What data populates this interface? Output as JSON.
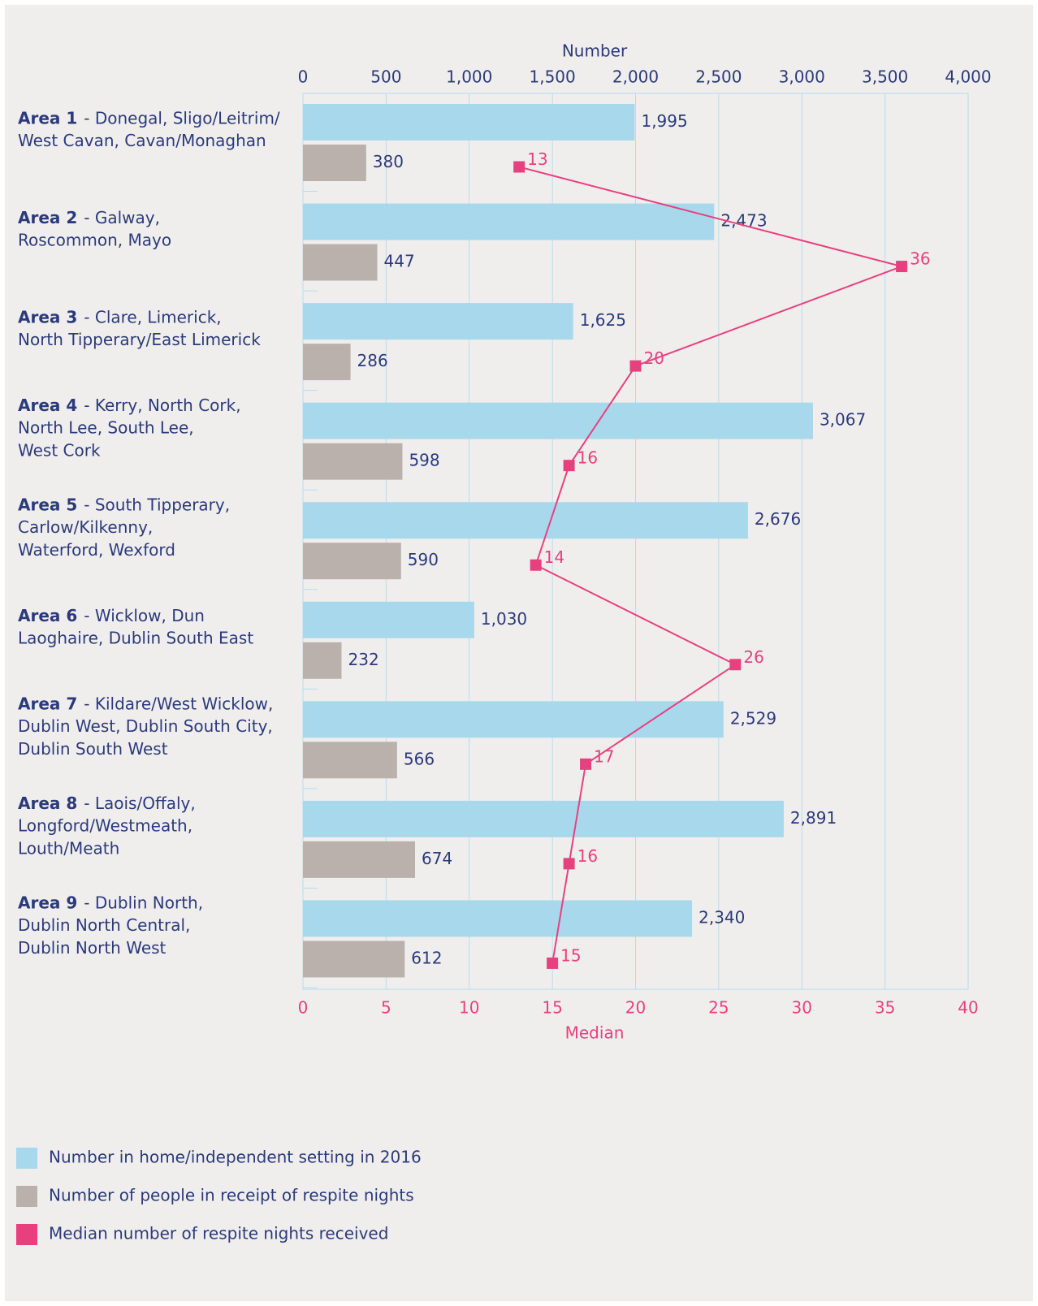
{
  "chart_data": {
    "type": "bar",
    "x_label": "Number",
    "x2_label": "Median",
    "categories": [
      {
        "name": "Area 1",
        "lines": [
          "- Donegal, Sligo/Leitrim/",
          "West Cavan, Cavan/Monaghan"
        ]
      },
      {
        "name": "Area 2",
        "lines": [
          "- Galway,",
          "Roscommon, Mayo"
        ]
      },
      {
        "name": "Area 3",
        "lines": [
          "- Clare, Limerick,",
          "North Tipperary/East Limerick"
        ]
      },
      {
        "name": "Area 4",
        "lines": [
          "- Kerry, North Cork,",
          "North Lee, South Lee,",
          "West Cork"
        ]
      },
      {
        "name": "Area 5",
        "lines": [
          "- South Tipperary,",
          "Carlow/Kilkenny,",
          "Waterford, Wexford"
        ]
      },
      {
        "name": "Area 6",
        "lines": [
          "- Wicklow, Dun",
          "Laoghaire, Dublin South East"
        ]
      },
      {
        "name": "Area 7",
        "lines": [
          "- Kildare/West Wicklow,",
          "Dublin West, Dublin South City,",
          "Dublin South West"
        ]
      },
      {
        "name": "Area 8",
        "lines": [
          "- Laois/Offaly,",
          "Longford/Westmeath,",
          "Louth/Meath"
        ]
      },
      {
        "name": "Area 9",
        "lines": [
          "- Dublin North,",
          "Dublin North Central,",
          "Dublin North West"
        ]
      }
    ],
    "series": [
      {
        "name": "Number in home/independent setting in 2016",
        "color": "#a8d8ec",
        "values": [
          1995,
          2473,
          1625,
          3067,
          2676,
          1030,
          2529,
          2891,
          2340
        ],
        "value_labels": [
          "1,995",
          "2,473",
          "1,625",
          "3,067",
          "2,676",
          "1,030",
          "2,529",
          "2,891",
          "2,340"
        ]
      },
      {
        "name": "Number of people in receipt of respite nights",
        "color": "#bab1ad",
        "values": [
          380,
          447,
          286,
          598,
          590,
          232,
          566,
          674,
          612
        ]
      },
      {
        "name": "Median number of respite nights received",
        "color": "#e8407f",
        "type": "line",
        "axis": "x2",
        "values": [
          13,
          36,
          20,
          16,
          14,
          26,
          17,
          16,
          15
        ]
      }
    ],
    "xlim": [
      0,
      4000
    ],
    "xticks": [
      0,
      500,
      {
        "value": 1000,
        "label": "1,000"
      },
      {
        "value": 1500,
        "label": "1,500"
      },
      {
        "value": 2000,
        "label": "2,000"
      },
      {
        "value": 2500,
        "label": "2,500"
      },
      {
        "value": 3000,
        "label": "3,000"
      },
      {
        "value": 3500,
        "label": "3,500"
      },
      {
        "value": 4000,
        "label": "4,000"
      }
    ],
    "x2lim": [
      0,
      40
    ],
    "x2ticks": [
      0,
      5,
      10,
      15,
      20,
      25,
      30,
      35,
      40
    ],
    "grid": true
  }
}
